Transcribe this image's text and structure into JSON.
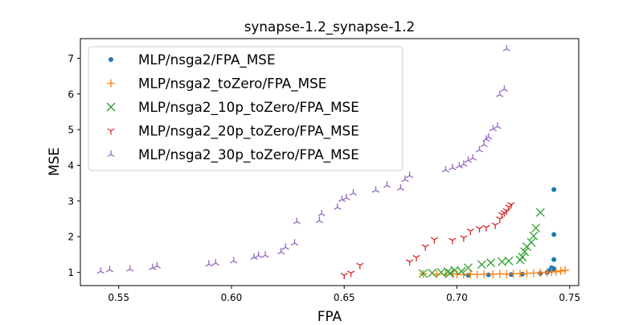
{
  "chart_data": {
    "type": "scatter",
    "title": "synapse-1.2_synapse-1.2",
    "xlabel": "FPA",
    "ylabel": "MSE",
    "xlim": [
      0.533,
      0.754
    ],
    "ylim": [
      0.63,
      7.55
    ],
    "xticks": [
      "0.55",
      "0.60",
      "0.65",
      "0.70",
      "0.75"
    ],
    "yticks": [
      "1",
      "2",
      "3",
      "4",
      "5",
      "6",
      "7"
    ],
    "grid": false,
    "legend_position": "upper-left",
    "series": [
      {
        "name": "MLP/nsga2/FPA_MSE",
        "marker": "dot",
        "color": "#1f77b4",
        "points": [
          [
            0.705,
            0.92
          ],
          [
            0.714,
            0.93
          ],
          [
            0.724,
            0.94
          ],
          [
            0.729,
            0.95
          ],
          [
            0.737,
            0.97
          ],
          [
            0.74,
            1.0
          ],
          [
            0.741,
            1.05
          ],
          [
            0.742,
            1.08
          ],
          [
            0.743,
            1.1
          ],
          [
            0.742,
            1.13
          ],
          [
            0.743,
            1.36
          ],
          [
            0.743,
            2.06
          ],
          [
            0.743,
            3.32
          ]
        ]
      },
      {
        "name": "MLP/nsga2_toZero/FPA_MSE",
        "marker": "plus",
        "color": "#ff7f0e",
        "points": [
          [
            0.685,
            0.96
          ],
          [
            0.691,
            0.95
          ],
          [
            0.695,
            0.94
          ],
          [
            0.698,
            0.96
          ],
          [
            0.7,
            0.95
          ],
          [
            0.703,
            0.94
          ],
          [
            0.706,
            0.95
          ],
          [
            0.709,
            0.94
          ],
          [
            0.712,
            0.95
          ],
          [
            0.716,
            0.95
          ],
          [
            0.719,
            0.96
          ],
          [
            0.722,
            0.95
          ],
          [
            0.725,
            0.96
          ],
          [
            0.728,
            0.97
          ],
          [
            0.731,
            0.97
          ],
          [
            0.734,
            0.98
          ],
          [
            0.737,
            0.99
          ],
          [
            0.74,
            1.0
          ],
          [
            0.742,
            1.01
          ],
          [
            0.744,
            1.02
          ],
          [
            0.746,
            1.04
          ],
          [
            0.748,
            1.06
          ]
        ]
      },
      {
        "name": "MLP/nsga2_10p_toZero/FPA_MSE",
        "marker": "x",
        "color": "#2ca02c",
        "points": [
          [
            0.685,
            0.97
          ],
          [
            0.689,
            0.98
          ],
          [
            0.693,
            1.0
          ],
          [
            0.696,
            1.02
          ],
          [
            0.697,
            0.98
          ],
          [
            0.699,
            1.06
          ],
          [
            0.702,
            1.03
          ],
          [
            0.705,
            1.13
          ],
          [
            0.711,
            1.22
          ],
          [
            0.715,
            1.27
          ],
          [
            0.72,
            1.3
          ],
          [
            0.723,
            1.32
          ],
          [
            0.728,
            1.35
          ],
          [
            0.729,
            1.43
          ],
          [
            0.73,
            1.58
          ],
          [
            0.731,
            1.72
          ],
          [
            0.733,
            1.84
          ],
          [
            0.734,
            2.02
          ],
          [
            0.735,
            2.24
          ],
          [
            0.737,
            2.68
          ]
        ]
      },
      {
        "name": "MLP/nsga2_20p_toZero/FPA_MSE",
        "marker": "tri_down",
        "color": "#d62728",
        "points": [
          [
            0.65,
            0.92
          ],
          [
            0.653,
            0.98
          ],
          [
            0.657,
            1.2
          ],
          [
            0.679,
            1.3
          ],
          [
            0.682,
            1.42
          ],
          [
            0.686,
            1.72
          ],
          [
            0.69,
            1.92
          ],
          [
            0.698,
            1.9
          ],
          [
            0.703,
            1.97
          ],
          [
            0.706,
            2.16
          ],
          [
            0.71,
            2.23
          ],
          [
            0.713,
            2.26
          ],
          [
            0.717,
            2.33
          ],
          [
            0.719,
            2.5
          ],
          [
            0.72,
            2.62
          ],
          [
            0.721,
            2.67
          ],
          [
            0.722,
            2.73
          ],
          [
            0.723,
            2.83
          ],
          [
            0.724,
            2.9
          ]
        ]
      },
      {
        "name": "MLP/nsga2_30p_toZero/FPA_MSE",
        "marker": "tri_up",
        "color": "#9467bd",
        "points": [
          [
            0.542,
            1.03
          ],
          [
            0.546,
            1.07
          ],
          [
            0.555,
            1.09
          ],
          [
            0.565,
            1.13
          ],
          [
            0.567,
            1.18
          ],
          [
            0.59,
            1.23
          ],
          [
            0.593,
            1.26
          ],
          [
            0.601,
            1.32
          ],
          [
            0.61,
            1.42
          ],
          [
            0.612,
            1.47
          ],
          [
            0.615,
            1.48
          ],
          [
            0.622,
            1.57
          ],
          [
            0.624,
            1.7
          ],
          [
            0.628,
            1.82
          ],
          [
            0.629,
            2.42
          ],
          [
            0.639,
            2.45
          ],
          [
            0.64,
            2.64
          ],
          [
            0.647,
            2.82
          ],
          [
            0.649,
            3.04
          ],
          [
            0.651,
            3.09
          ],
          [
            0.654,
            3.22
          ],
          [
            0.664,
            3.3
          ],
          [
            0.669,
            3.44
          ],
          [
            0.675,
            3.36
          ],
          [
            0.677,
            3.6
          ],
          [
            0.679,
            3.71
          ],
          [
            0.695,
            3.87
          ],
          [
            0.698,
            3.93
          ],
          [
            0.701,
            3.98
          ],
          [
            0.703,
            4.03
          ],
          [
            0.705,
            4.14
          ],
          [
            0.707,
            4.2
          ],
          [
            0.71,
            4.43
          ],
          [
            0.712,
            4.58
          ],
          [
            0.713,
            4.73
          ],
          [
            0.714,
            4.79
          ],
          [
            0.716,
            5.02
          ],
          [
            0.718,
            5.09
          ],
          [
            0.719,
            5.98
          ],
          [
            0.721,
            6.13
          ],
          [
            0.722,
            7.26
          ]
        ]
      }
    ]
  }
}
